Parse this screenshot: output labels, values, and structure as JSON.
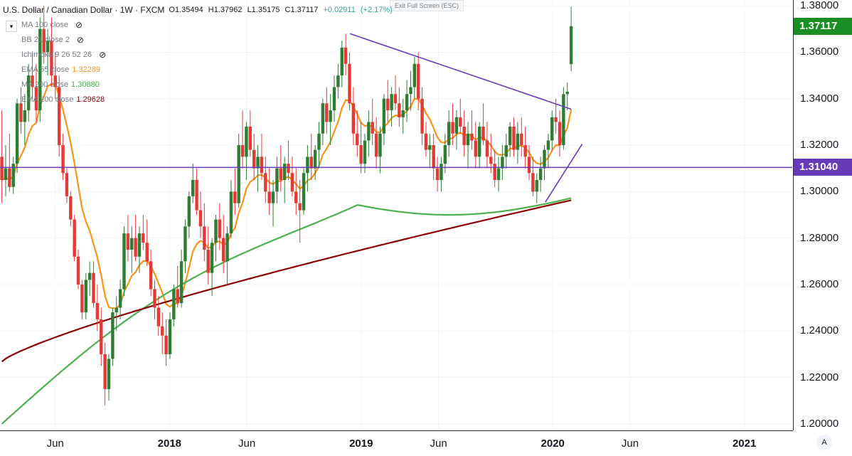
{
  "header": {
    "symbol_title": "U.S. Dollar / Canadian Dollar · 1W · FXCM",
    "open": "O1.35494",
    "high": "H1.37962",
    "low": "L1.35175",
    "close": "C1.37117",
    "change": "+0.02911",
    "change_pct": "(+2.17%)",
    "exit_fullscreen": "Exit Full Screen (ESC)"
  },
  "indicators": [
    {
      "label": "MA 100 close",
      "value": "",
      "color": "#787b86",
      "hidden": true
    },
    {
      "label": "BB 21 close 2",
      "value": "",
      "color": "#787b86",
      "hidden": true
    },
    {
      "label": "Ichimoku 9 26 52 26",
      "value": "",
      "color": "#787b86",
      "hidden": true
    },
    {
      "label": "EMA 55 close",
      "value": "1.32289",
      "color": "#f7931a",
      "hidden": false
    },
    {
      "label": "MA 200 close",
      "value": "1.30880",
      "color": "#4caf50",
      "hidden": false
    },
    {
      "label": "EMA 200 close",
      "value": "1.29628",
      "color": "#8b0000",
      "hidden": false
    }
  ],
  "price_badges": {
    "last_price": "1.37117",
    "last_color": "#1b8e23",
    "level_price": "1.31040",
    "level_color": "#673ab7"
  },
  "chart_data": {
    "type": "candlestick",
    "symbol": "USDCAD",
    "interval": "1W",
    "y_ticks": [
      "1.20000",
      "1.22000",
      "1.24000",
      "1.26000",
      "1.28000",
      "1.30000",
      "1.32000",
      "1.34000",
      "1.36000",
      "1.38000"
    ],
    "ylim": [
      1.1975,
      1.3825
    ],
    "x_ticks": [
      "Jun",
      "2018",
      "Jun",
      "2019",
      "Jun",
      "2020",
      "Jun",
      "2021"
    ],
    "x_range_weeks": [
      0,
      215
    ],
    "x_tick_weeks": [
      15,
      46,
      67,
      98,
      119,
      150,
      171,
      202
    ],
    "horizontal_level": 1.3104,
    "trendlines": [
      {
        "from": [
          95,
          1.368
        ],
        "to": [
          155,
          1.3355
        ],
        "color": "#673ab7"
      },
      {
        "from": [
          148,
          1.2955
        ],
        "to": [
          158,
          1.3205
        ],
        "color": "#673ab7"
      }
    ],
    "candles_ohlc": [
      [
        1.315,
        1.335,
        1.295,
        1.305
      ],
      [
        1.305,
        1.32,
        1.298,
        1.31
      ],
      [
        1.31,
        1.325,
        1.3,
        1.302
      ],
      [
        1.302,
        1.315,
        1.299,
        1.312
      ],
      [
        1.312,
        1.34,
        1.308,
        1.338
      ],
      [
        1.338,
        1.345,
        1.325,
        1.33
      ],
      [
        1.33,
        1.342,
        1.32,
        1.335
      ],
      [
        1.335,
        1.355,
        1.33,
        1.35
      ],
      [
        1.35,
        1.36,
        1.34,
        1.345
      ],
      [
        1.345,
        1.355,
        1.33,
        1.335
      ],
      [
        1.335,
        1.375,
        1.33,
        1.37
      ],
      [
        1.37,
        1.38,
        1.355,
        1.36
      ],
      [
        1.36,
        1.37,
        1.35,
        1.365
      ],
      [
        1.365,
        1.375,
        1.345,
        1.35
      ],
      [
        1.35,
        1.36,
        1.34,
        1.345
      ],
      [
        1.345,
        1.35,
        1.315,
        1.32
      ],
      [
        1.32,
        1.325,
        1.305,
        1.308
      ],
      [
        1.308,
        1.31,
        1.295,
        1.298
      ],
      [
        1.298,
        1.3,
        1.285,
        1.288
      ],
      [
        1.288,
        1.29,
        1.27,
        1.272
      ],
      [
        1.272,
        1.275,
        1.258,
        1.26
      ],
      [
        1.26,
        1.262,
        1.245,
        1.248
      ],
      [
        1.248,
        1.265,
        1.245,
        1.262
      ],
      [
        1.262,
        1.27,
        1.255,
        1.265
      ],
      [
        1.265,
        1.27,
        1.25,
        1.252
      ],
      [
        1.252,
        1.26,
        1.24,
        1.245
      ],
      [
        1.245,
        1.25,
        1.225,
        1.23
      ],
      [
        1.23,
        1.235,
        1.208,
        1.215
      ],
      [
        1.215,
        1.23,
        1.21,
        1.228
      ],
      [
        1.228,
        1.25,
        1.225,
        1.248
      ],
      [
        1.248,
        1.255,
        1.24,
        1.25
      ],
      [
        1.25,
        1.262,
        1.245,
        1.258
      ],
      [
        1.258,
        1.285,
        1.255,
        1.282
      ],
      [
        1.282,
        1.29,
        1.27,
        1.275
      ],
      [
        1.275,
        1.285,
        1.265,
        1.28
      ],
      [
        1.28,
        1.29,
        1.27,
        1.272
      ],
      [
        1.272,
        1.285,
        1.265,
        1.282
      ],
      [
        1.282,
        1.29,
        1.275,
        1.278
      ],
      [
        1.278,
        1.288,
        1.268,
        1.27
      ],
      [
        1.27,
        1.275,
        1.255,
        1.258
      ],
      [
        1.258,
        1.262,
        1.245,
        1.25
      ],
      [
        1.25,
        1.255,
        1.238,
        1.242
      ],
      [
        1.242,
        1.248,
        1.23,
        1.238
      ],
      [
        1.238,
        1.245,
        1.225,
        1.23
      ],
      [
        1.23,
        1.248,
        1.228,
        1.245
      ],
      [
        1.245,
        1.26,
        1.242,
        1.258
      ],
      [
        1.258,
        1.268,
        1.25,
        1.252
      ],
      [
        1.252,
        1.275,
        1.25,
        1.27
      ],
      [
        1.27,
        1.288,
        1.265,
        1.285
      ],
      [
        1.285,
        1.3,
        1.28,
        1.298
      ],
      [
        1.298,
        1.312,
        1.295,
        1.305
      ],
      [
        1.305,
        1.31,
        1.29,
        1.292
      ],
      [
        1.292,
        1.3,
        1.28,
        1.285
      ],
      [
        1.285,
        1.295,
        1.27,
        1.275
      ],
      [
        1.275,
        1.285,
        1.26,
        1.265
      ],
      [
        1.265,
        1.28,
        1.255,
        1.278
      ],
      [
        1.278,
        1.29,
        1.27,
        1.288
      ],
      [
        1.288,
        1.295,
        1.275,
        1.28
      ],
      [
        1.28,
        1.29,
        1.265,
        1.27
      ],
      [
        1.27,
        1.285,
        1.26,
        1.282
      ],
      [
        1.282,
        1.305,
        1.28,
        1.3
      ],
      [
        1.3,
        1.31,
        1.29,
        1.295
      ],
      [
        1.295,
        1.325,
        1.293,
        1.32
      ],
      [
        1.32,
        1.335,
        1.31,
        1.315
      ],
      [
        1.315,
        1.33,
        1.305,
        1.328
      ],
      [
        1.328,
        1.335,
        1.315,
        1.318
      ],
      [
        1.318,
        1.325,
        1.305,
        1.31
      ],
      [
        1.31,
        1.32,
        1.3,
        1.315
      ],
      [
        1.315,
        1.325,
        1.305,
        1.308
      ],
      [
        1.308,
        1.315,
        1.295,
        1.3
      ],
      [
        1.3,
        1.31,
        1.29,
        1.295
      ],
      [
        1.295,
        1.305,
        1.285,
        1.3
      ],
      [
        1.3,
        1.315,
        1.295,
        1.31
      ],
      [
        1.31,
        1.32,
        1.3,
        1.305
      ],
      [
        1.305,
        1.315,
        1.295,
        1.312
      ],
      [
        1.312,
        1.322,
        1.305,
        1.308
      ],
      [
        1.308,
        1.315,
        1.298,
        1.3
      ],
      [
        1.3,
        1.31,
        1.29,
        1.295
      ],
      [
        1.295,
        1.305,
        1.278,
        1.292
      ],
      [
        1.292,
        1.31,
        1.29,
        1.308
      ],
      [
        1.308,
        1.32,
        1.3,
        1.315
      ],
      [
        1.315,
        1.325,
        1.305,
        1.31
      ],
      [
        1.31,
        1.32,
        1.305,
        1.318
      ],
      [
        1.318,
        1.33,
        1.31,
        1.325
      ],
      [
        1.325,
        1.34,
        1.32,
        1.338
      ],
      [
        1.338,
        1.345,
        1.325,
        1.33
      ],
      [
        1.33,
        1.342,
        1.32,
        1.335
      ],
      [
        1.335,
        1.35,
        1.33,
        1.345
      ],
      [
        1.345,
        1.355,
        1.34,
        1.35
      ],
      [
        1.35,
        1.365,
        1.345,
        1.362
      ],
      [
        1.362,
        1.368,
        1.35,
        1.355
      ],
      [
        1.355,
        1.36,
        1.335,
        1.338
      ],
      [
        1.338,
        1.345,
        1.32,
        1.325
      ],
      [
        1.325,
        1.335,
        1.315,
        1.32
      ],
      [
        1.32,
        1.33,
        1.308,
        1.312
      ],
      [
        1.312,
        1.325,
        1.308,
        1.322
      ],
      [
        1.322,
        1.335,
        1.315,
        1.33
      ],
      [
        1.33,
        1.34,
        1.32,
        1.325
      ],
      [
        1.325,
        1.332,
        1.31,
        1.315
      ],
      [
        1.315,
        1.328,
        1.308,
        1.325
      ],
      [
        1.325,
        1.342,
        1.32,
        1.34
      ],
      [
        1.34,
        1.348,
        1.33,
        1.335
      ],
      [
        1.335,
        1.345,
        1.328,
        1.342
      ],
      [
        1.342,
        1.35,
        1.335,
        1.338
      ],
      [
        1.338,
        1.345,
        1.328,
        1.332
      ],
      [
        1.332,
        1.34,
        1.325,
        1.335
      ],
      [
        1.335,
        1.348,
        1.33,
        1.342
      ],
      [
        1.342,
        1.352,
        1.335,
        1.345
      ],
      [
        1.345,
        1.358,
        1.34,
        1.355
      ],
      [
        1.355,
        1.36,
        1.335,
        1.34
      ],
      [
        1.34,
        1.345,
        1.32,
        1.325
      ],
      [
        1.325,
        1.33,
        1.315,
        1.318
      ],
      [
        1.318,
        1.325,
        1.31,
        1.32
      ],
      [
        1.32,
        1.325,
        1.305,
        1.31
      ],
      [
        1.31,
        1.315,
        1.3,
        1.305
      ],
      [
        1.305,
        1.315,
        1.3,
        1.312
      ],
      [
        1.312,
        1.325,
        1.308,
        1.32
      ],
      [
        1.32,
        1.335,
        1.315,
        1.33
      ],
      [
        1.33,
        1.338,
        1.32,
        1.325
      ],
      [
        1.325,
        1.335,
        1.318,
        1.332
      ],
      [
        1.332,
        1.34,
        1.325,
        1.328
      ],
      [
        1.328,
        1.335,
        1.315,
        1.32
      ],
      [
        1.32,
        1.33,
        1.31,
        1.325
      ],
      [
        1.325,
        1.335,
        1.318,
        1.322
      ],
      [
        1.322,
        1.33,
        1.31,
        1.315
      ],
      [
        1.315,
        1.33,
        1.31,
        1.328
      ],
      [
        1.328,
        1.338,
        1.32,
        1.322
      ],
      [
        1.322,
        1.33,
        1.31,
        1.315
      ],
      [
        1.315,
        1.325,
        1.308,
        1.312
      ],
      [
        1.312,
        1.318,
        1.302,
        1.305
      ],
      [
        1.305,
        1.315,
        1.3,
        1.31
      ],
      [
        1.31,
        1.32,
        1.305,
        1.315
      ],
      [
        1.315,
        1.325,
        1.31,
        1.32
      ],
      [
        1.32,
        1.33,
        1.315,
        1.328
      ],
      [
        1.328,
        1.332,
        1.315,
        1.318
      ],
      [
        1.318,
        1.33,
        1.312,
        1.325
      ],
      [
        1.325,
        1.332,
        1.315,
        1.32
      ],
      [
        1.32,
        1.328,
        1.31,
        1.315
      ],
      [
        1.315,
        1.32,
        1.305,
        1.308
      ],
      [
        1.308,
        1.315,
        1.298,
        1.3
      ],
      [
        1.3,
        1.308,
        1.295,
        1.305
      ],
      [
        1.305,
        1.315,
        1.3,
        1.31
      ],
      [
        1.31,
        1.32,
        1.305,
        1.318
      ],
      [
        1.318,
        1.325,
        1.31,
        1.322
      ],
      [
        1.322,
        1.335,
        1.318,
        1.332
      ],
      [
        1.332,
        1.34,
        1.325,
        1.33
      ],
      [
        1.33,
        1.335,
        1.315,
        1.32
      ],
      [
        1.32,
        1.345,
        1.318,
        1.342
      ],
      [
        1.342,
        1.347,
        1.335,
        1.343
      ],
      [
        1.3549,
        1.3796,
        1.3518,
        1.3712
      ]
    ]
  }
}
